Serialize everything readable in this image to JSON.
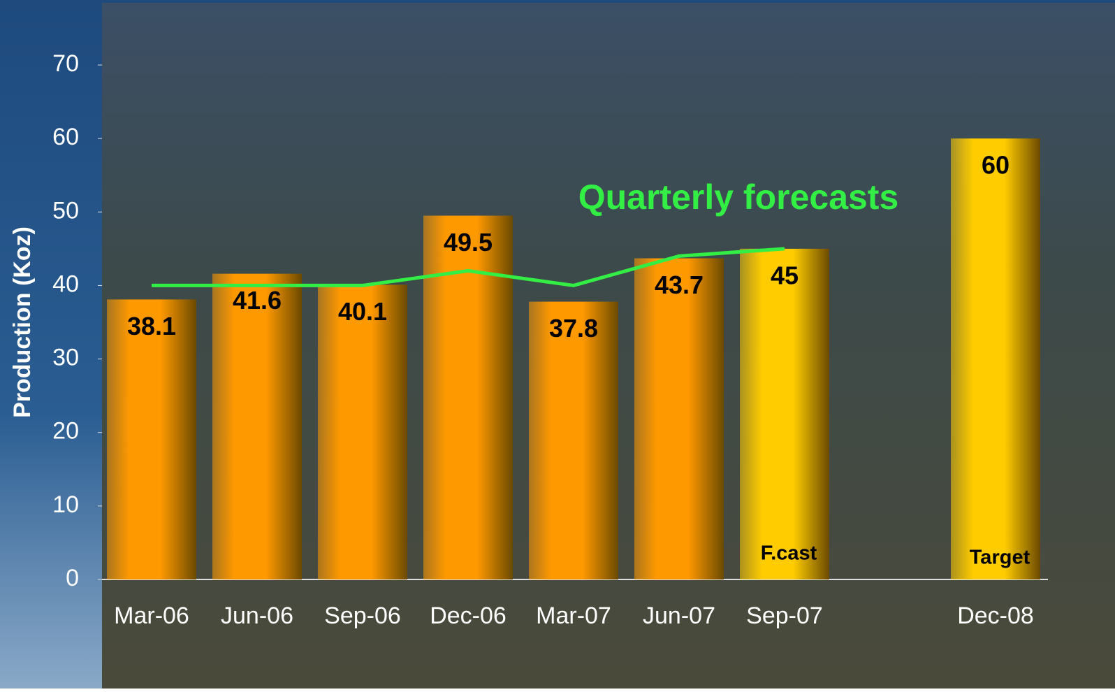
{
  "chart_data": {
    "type": "bar",
    "y_axis_label": "Production (Koz)",
    "categories": [
      "Mar-06",
      "Jun-06",
      "Sep-06",
      "Dec-06",
      "Mar-07",
      "Jun-07",
      "Sep-07",
      null,
      "Dec-08"
    ],
    "values": [
      38.1,
      41.6,
      40.1,
      49.5,
      37.8,
      43.7,
      45,
      null,
      60
    ],
    "colors": [
      "#ff9900",
      "#ff9900",
      "#ff9900",
      "#ff9900",
      "#ff9900",
      "#ff9900",
      "#ffcc00",
      null,
      "#ffcc00"
    ],
    "bar_notes": [
      null,
      null,
      null,
      null,
      null,
      null,
      "F.cast",
      null,
      "Target"
    ],
    "line": {
      "name": "Quarterly forecasts",
      "color": "#33ee44",
      "values": [
        40,
        40,
        40,
        42,
        40,
        44,
        45,
        null,
        null
      ]
    },
    "ylim": [
      0,
      70
    ],
    "yticks": [
      0,
      10,
      20,
      30,
      40,
      50,
      60,
      70
    ]
  }
}
